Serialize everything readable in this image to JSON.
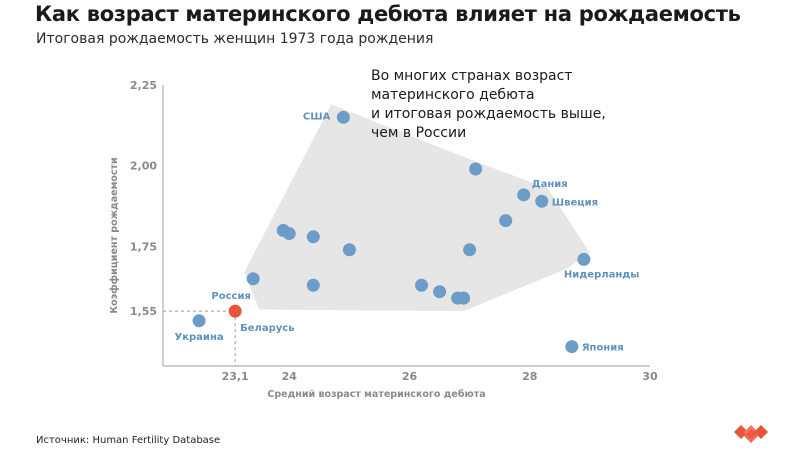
{
  "header": {
    "title": "Как возраст материнского дебюта влияет на рождаемость",
    "subtitle": "Итоговая рождаемость женщин 1973 года рождения"
  },
  "footer": {
    "source": "Источник: Human Fertility Database"
  },
  "colors": {
    "point": "#6c9dc8",
    "highlight": "#e8553a",
    "hull": "#e6e6e6",
    "axis": "#b0b0b0",
    "label": "#5f93bf"
  },
  "chart_data": {
    "type": "scatter",
    "xlabel": "Средний возраст материнского дебюта",
    "ylabel": "Коэффициент рождаемости",
    "xlim": [
      21.9,
      30
    ],
    "ylim": [
      1.38,
      2.25
    ],
    "xticks": [
      {
        "value": 23.1,
        "label": "23,1"
      },
      {
        "value": 24,
        "label": "24"
      },
      {
        "value": 26,
        "label": "26"
      },
      {
        "value": 28,
        "label": "28"
      },
      {
        "value": 30,
        "label": "30"
      }
    ],
    "yticks": [
      {
        "value": 1.55,
        "label": "1,55"
      },
      {
        "value": 1.75,
        "label": "1,75"
      },
      {
        "value": 2.0,
        "label": "2,00"
      },
      {
        "value": 2.25,
        "label": "2,25"
      }
    ],
    "annotation": [
      "Во многих странах возраст",
      "материнского дебюта",
      "и итоговая рождаемость выше,",
      "чем в России"
    ],
    "points": [
      {
        "x": 23.1,
        "y": 1.55,
        "label": "Россия",
        "highlight": true,
        "label_pos": "above"
      },
      {
        "x": 22.5,
        "y": 1.52,
        "label": "Украина",
        "label_pos": "below"
      },
      {
        "x": 23.1,
        "y": 1.55,
        "label": "Беларусь",
        "label_pos": "below-right",
        "hidden_point": true
      },
      {
        "x": 24.9,
        "y": 2.15,
        "label": "США",
        "label_pos": "left"
      },
      {
        "x": 27.9,
        "y": 1.91,
        "label": "Дания",
        "label_pos": "above-right"
      },
      {
        "x": 28.2,
        "y": 1.89,
        "label": "Швеция",
        "label_pos": "right"
      },
      {
        "x": 28.9,
        "y": 1.71,
        "label": "Нидерланды",
        "label_pos": "below-right"
      },
      {
        "x": 28.7,
        "y": 1.44,
        "label": "Япония",
        "label_pos": "right"
      },
      {
        "x": 27.1,
        "y": 1.99,
        "label": ""
      },
      {
        "x": 27.6,
        "y": 1.83,
        "label": ""
      },
      {
        "x": 23.9,
        "y": 1.8,
        "label": ""
      },
      {
        "x": 24.0,
        "y": 1.79,
        "label": ""
      },
      {
        "x": 24.4,
        "y": 1.78,
        "label": ""
      },
      {
        "x": 25.0,
        "y": 1.74,
        "label": ""
      },
      {
        "x": 27.0,
        "y": 1.74,
        "label": ""
      },
      {
        "x": 23.4,
        "y": 1.65,
        "label": ""
      },
      {
        "x": 24.4,
        "y": 1.63,
        "label": ""
      },
      {
        "x": 26.2,
        "y": 1.63,
        "label": ""
      },
      {
        "x": 26.5,
        "y": 1.61,
        "label": ""
      },
      {
        "x": 26.8,
        "y": 1.59,
        "label": ""
      },
      {
        "x": 26.9,
        "y": 1.59,
        "label": ""
      }
    ],
    "hull": [
      {
        "x": 24.7,
        "y": 2.19
      },
      {
        "x": 27.0,
        "y": 2.02
      },
      {
        "x": 28.3,
        "y": 1.93
      },
      {
        "x": 29.0,
        "y": 1.73
      },
      {
        "x": 28.6,
        "y": 1.68
      },
      {
        "x": 26.9,
        "y": 1.55
      },
      {
        "x": 23.5,
        "y": 1.555
      },
      {
        "x": 23.25,
        "y": 1.67
      }
    ],
    "grid": false
  }
}
